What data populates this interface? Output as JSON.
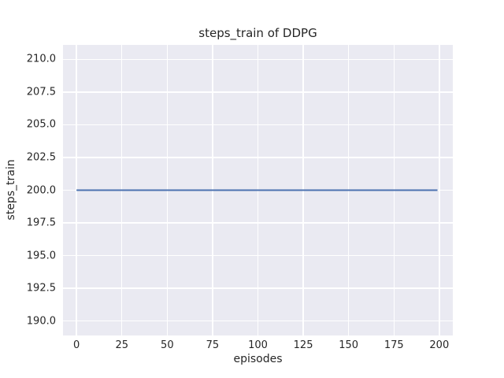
{
  "chart_data": {
    "type": "line",
    "title": "steps_train of DDPG",
    "xlabel": "episodes",
    "ylabel": "steps_train",
    "x": [
      0,
      199
    ],
    "series": [
      {
        "name": "steps_train",
        "y": [
          200,
          200
        ],
        "color": "#4C72B0"
      }
    ],
    "xticks": [
      0,
      25,
      50,
      75,
      100,
      125,
      150,
      175,
      200
    ],
    "xtick_labels": [
      "0",
      "25",
      "50",
      "75",
      "100",
      "125",
      "150",
      "175",
      "200"
    ],
    "yticks": [
      190.0,
      192.5,
      195.0,
      197.5,
      200.0,
      202.5,
      205.0,
      207.5,
      210.0
    ],
    "ytick_labels": [
      "190.0",
      "192.5",
      "195.0",
      "197.5",
      "200.0",
      "202.5",
      "205.0",
      "207.5",
      "210.0"
    ],
    "xlim": [
      -7.45,
      207.45
    ],
    "ylim": [
      188.9,
      211.1
    ],
    "grid": true,
    "legend_position": "none",
    "colors": {
      "plot_background": "#EAEAF2",
      "grid": "#FFFFFF",
      "text": "#262626",
      "line": "#4C72B0"
    }
  }
}
